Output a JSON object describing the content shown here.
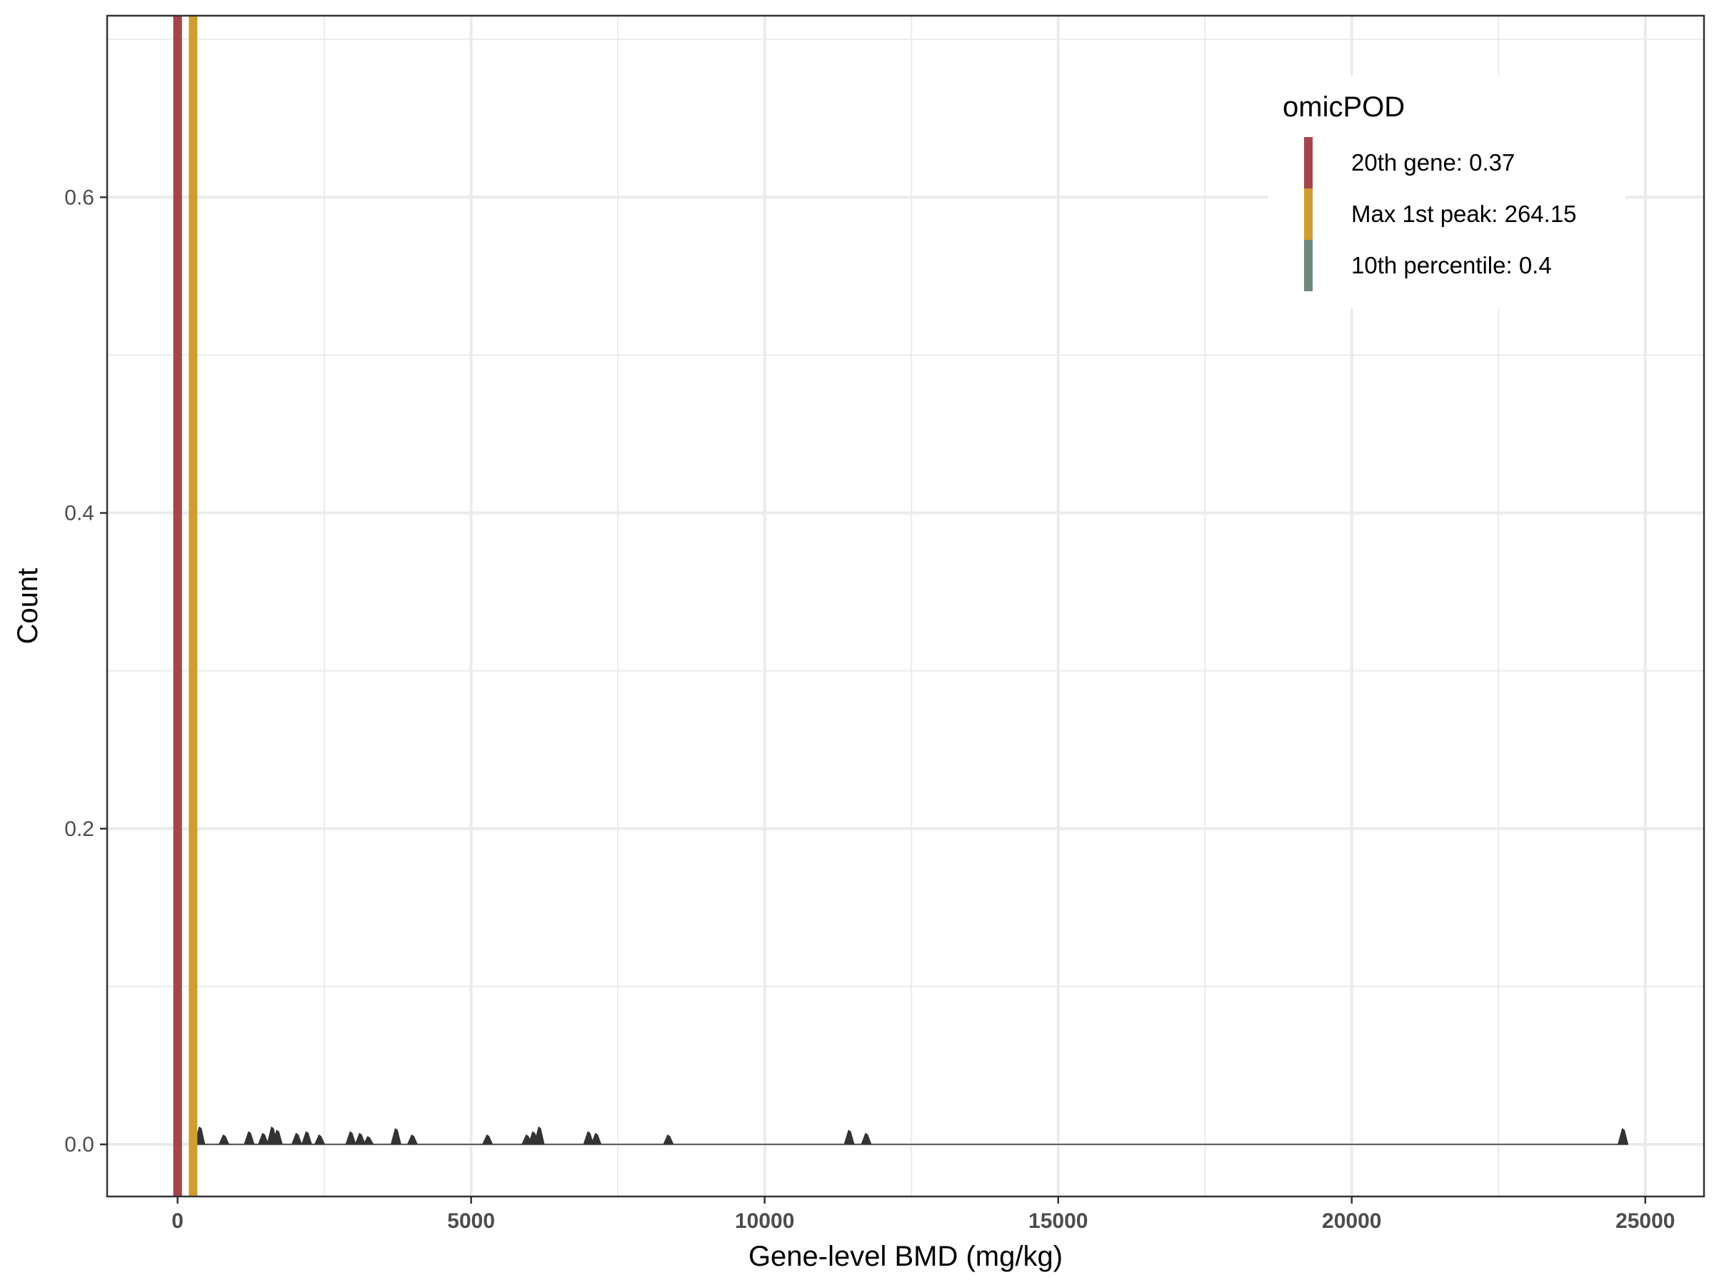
{
  "chart_data": {
    "type": "area",
    "title": "",
    "xlabel": "Gene-level BMD (mg/kg)",
    "ylabel": "Count",
    "xlim": [
      -1200,
      26000
    ],
    "ylim": [
      -0.033,
      0.715
    ],
    "x_ticks": [
      0,
      5000,
      10000,
      15000,
      20000,
      25000
    ],
    "x_tick_labels": [
      "0",
      "5000",
      "10000",
      "15000",
      "20000",
      "25000"
    ],
    "y_ticks": [
      0.0,
      0.2,
      0.4,
      0.6
    ],
    "y_tick_labels": [
      "0.0",
      "0.2",
      "0.4",
      "0.6"
    ],
    "grid": true,
    "density_peaks": [
      {
        "x": 380,
        "y": 0.011
      },
      {
        "x": 790,
        "y": 0.006
      },
      {
        "x": 1220,
        "y": 0.008
      },
      {
        "x": 1460,
        "y": 0.007
      },
      {
        "x": 1610,
        "y": 0.011
      },
      {
        "x": 1700,
        "y": 0.009
      },
      {
        "x": 2030,
        "y": 0.007
      },
      {
        "x": 2200,
        "y": 0.008
      },
      {
        "x": 2420,
        "y": 0.006
      },
      {
        "x": 2950,
        "y": 0.008
      },
      {
        "x": 3110,
        "y": 0.007
      },
      {
        "x": 3250,
        "y": 0.005
      },
      {
        "x": 3720,
        "y": 0.01
      },
      {
        "x": 4000,
        "y": 0.006
      },
      {
        "x": 5280,
        "y": 0.006
      },
      {
        "x": 5950,
        "y": 0.006
      },
      {
        "x": 6060,
        "y": 0.008
      },
      {
        "x": 6160,
        "y": 0.011
      },
      {
        "x": 7000,
        "y": 0.008
      },
      {
        "x": 7130,
        "y": 0.007
      },
      {
        "x": 8360,
        "y": 0.006
      },
      {
        "x": 11440,
        "y": 0.009
      },
      {
        "x": 11730,
        "y": 0.007
      },
      {
        "x": 24620,
        "y": 0.01
      }
    ],
    "vlines": [
      {
        "name": "20th gene: 0.37",
        "x": 0.37,
        "color": "#a6444c"
      },
      {
        "name": "Max 1st peak: 264.15",
        "x": 264.15,
        "color": "#d09d31"
      },
      {
        "name": "10th percentile: 0.4",
        "x": 0.4,
        "color": "#6b8a7c"
      }
    ],
    "legend": {
      "title": "omicPOD",
      "position": "top-right",
      "entries": [
        {
          "label": "20th gene: 0.37",
          "color": "#a6444c"
        },
        {
          "label": "Max 1st peak: 264.15",
          "color": "#d09d31"
        },
        {
          "label": "10th percentile: 0.4",
          "color": "#6b8a7c"
        }
      ]
    }
  }
}
